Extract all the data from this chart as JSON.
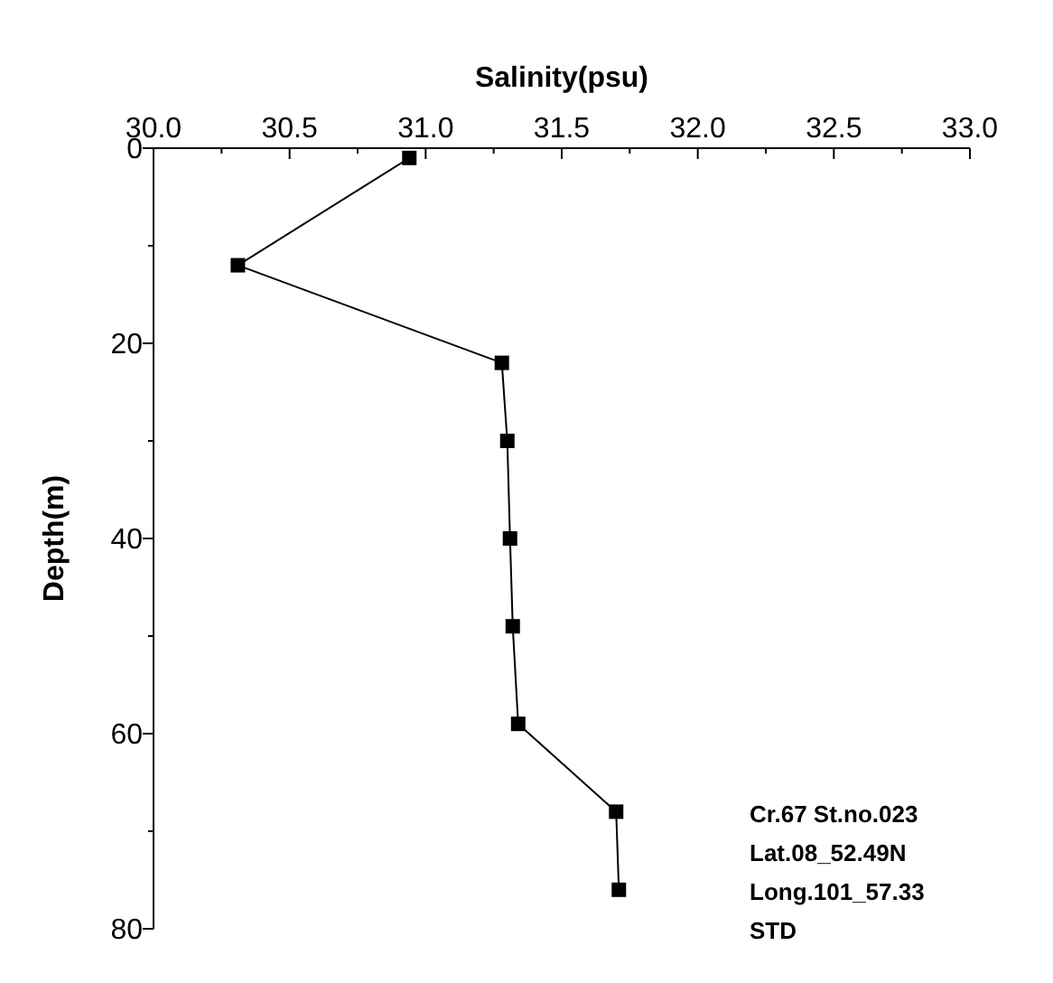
{
  "chart_data": {
    "type": "line",
    "xlabel": "Salinity(psu)",
    "ylabel": "Depth(m)",
    "x": [
      30.94,
      30.31,
      31.28,
      31.3,
      31.31,
      31.32,
      31.34,
      31.7,
      31.71
    ],
    "series": [
      {
        "color": "#000000",
        "values": [
          1,
          12,
          22,
          30,
          40,
          49,
          59,
          68,
          76
        ]
      }
    ],
    "xlim": [
      30,
      33
    ],
    "xticks": [
      {
        "value": 30,
        "label": "30.0"
      },
      {
        "value": 30.25,
        "label": null
      },
      {
        "value": 30.5,
        "label": "30.5"
      },
      {
        "value": 30.75,
        "label": null
      },
      {
        "value": 31,
        "label": "31.0"
      },
      {
        "value": 31.25,
        "label": null
      },
      {
        "value": 31.5,
        "label": "31.5"
      },
      {
        "value": 31.75,
        "label": null
      },
      {
        "value": 32,
        "label": "32.0"
      },
      {
        "value": 32.25,
        "label": null
      },
      {
        "value": 32.5,
        "label": "32.5"
      },
      {
        "value": 32.75,
        "label": null
      },
      {
        "value": 33,
        "label": "33.0"
      }
    ],
    "ylim": [
      80,
      0
    ],
    "yticks": [
      0,
      {
        "value": 10,
        "label": null
      },
      20,
      {
        "value": 30,
        "label": null
      },
      40,
      {
        "value": 50,
        "label": null
      },
      60,
      {
        "value": 70,
        "label": null
      },
      80
    ],
    "marker": "square",
    "line_style": "solid",
    "grid": false,
    "annotations": [
      "Cr.67 St.no.023",
      "Lat.08_52.49N",
      "Long.101_57.33",
      "STD"
    ]
  }
}
